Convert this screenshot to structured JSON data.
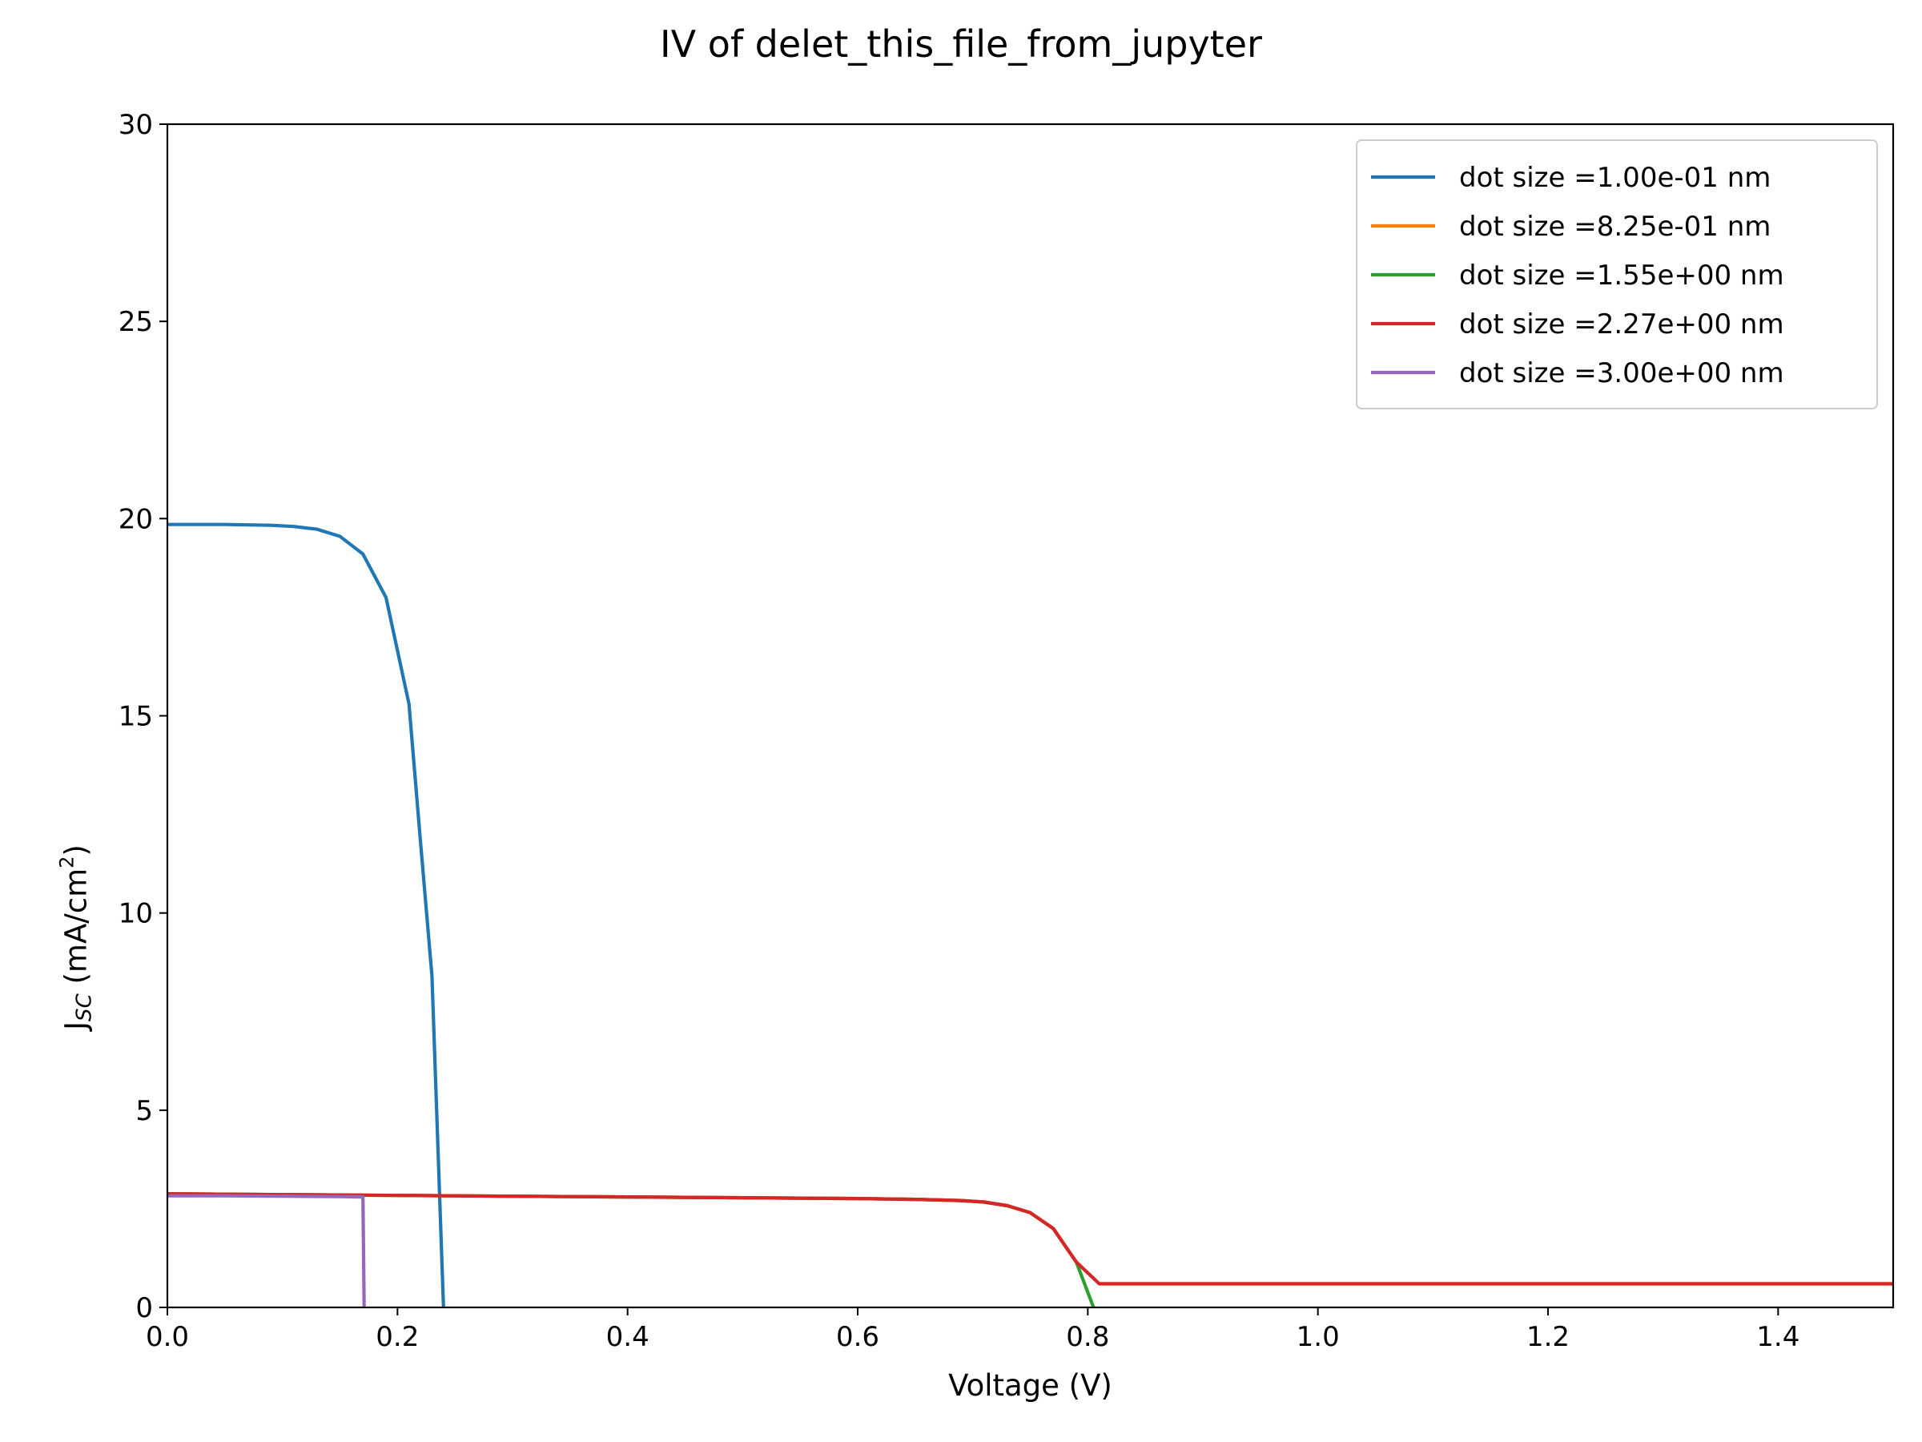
{
  "chart_data": {
    "type": "line",
    "title": "IV of delet_this_file_from_jupyter",
    "xlabel": "Voltage (V)",
    "ylabel": {
      "main": "J",
      "subscript": "SC",
      "unit_prefix": "(mA/cm",
      "unit_power": "2",
      "unit_suffix": ")"
    },
    "xlim": [
      0.0,
      1.5
    ],
    "ylim": [
      0,
      30
    ],
    "xticks": [
      0.0,
      0.2,
      0.4,
      0.6,
      0.8,
      1.0,
      1.2,
      1.4
    ],
    "xtick_labels": [
      "0.0",
      "0.2",
      "0.4",
      "0.6",
      "0.8",
      "1.0",
      "1.2",
      "1.4"
    ],
    "yticks": [
      0,
      5,
      10,
      15,
      20,
      25,
      30
    ],
    "ytick_labels": [
      "0",
      "5",
      "10",
      "15",
      "20",
      "25",
      "30"
    ],
    "grid": false,
    "legend_position": "top-right",
    "series": [
      {
        "name": "dot size =1.00e-01 nm",
        "color": "#1f77b4",
        "x": [
          0.0,
          0.03,
          0.05,
          0.07,
          0.09,
          0.11,
          0.13,
          0.15,
          0.17,
          0.19,
          0.21,
          0.22,
          0.23,
          0.24
        ],
        "y": [
          19.85,
          19.85,
          19.85,
          19.84,
          19.83,
          19.8,
          19.73,
          19.55,
          19.1,
          18.0,
          15.3,
          11.8,
          8.4,
          0.0
        ]
      },
      {
        "name": "dot size =8.25e-01 nm",
        "color": "#ff7f0e",
        "x": [
          0.0,
          0.1,
          0.2,
          0.3,
          0.4,
          0.5,
          0.6,
          0.65,
          0.69,
          0.71,
          0.73,
          0.75,
          0.77,
          0.79,
          0.81,
          0.9,
          1.0,
          1.1,
          1.2,
          1.3,
          1.4,
          1.5
        ],
        "y": [
          2.88,
          2.86,
          2.84,
          2.82,
          2.8,
          2.78,
          2.76,
          2.74,
          2.71,
          2.67,
          2.58,
          2.4,
          2.0,
          1.15,
          0.6,
          0.6,
          0.6,
          0.6,
          0.6,
          0.6,
          0.6,
          0.6
        ]
      },
      {
        "name": "dot size =1.55e+00 nm",
        "color": "#2ca02c",
        "x": [
          0.0,
          0.1,
          0.2,
          0.3,
          0.4,
          0.5,
          0.6,
          0.65,
          0.69,
          0.71,
          0.73,
          0.75,
          0.77,
          0.79,
          0.805
        ],
        "y": [
          2.88,
          2.86,
          2.84,
          2.82,
          2.8,
          2.78,
          2.76,
          2.74,
          2.71,
          2.67,
          2.58,
          2.4,
          2.0,
          1.15,
          0.0
        ]
      },
      {
        "name": "dot size =2.27e+00 nm",
        "color": "#d62728",
        "x": [
          0.0,
          0.1,
          0.2,
          0.3,
          0.4,
          0.5,
          0.6,
          0.65,
          0.69,
          0.71,
          0.73,
          0.75,
          0.77,
          0.79,
          0.81,
          0.9,
          1.0,
          1.1,
          1.2,
          1.3,
          1.4,
          1.5
        ],
        "y": [
          2.88,
          2.86,
          2.84,
          2.82,
          2.8,
          2.78,
          2.76,
          2.74,
          2.71,
          2.67,
          2.58,
          2.4,
          2.0,
          1.15,
          0.6,
          0.6,
          0.6,
          0.6,
          0.6,
          0.6,
          0.6,
          0.6
        ]
      },
      {
        "name": "dot size =3.00e+00 nm",
        "color": "#9467bd",
        "x": [
          0.0,
          0.05,
          0.1,
          0.15,
          0.17,
          0.171
        ],
        "y": [
          2.83,
          2.83,
          2.82,
          2.81,
          2.8,
          0.0
        ]
      }
    ]
  }
}
